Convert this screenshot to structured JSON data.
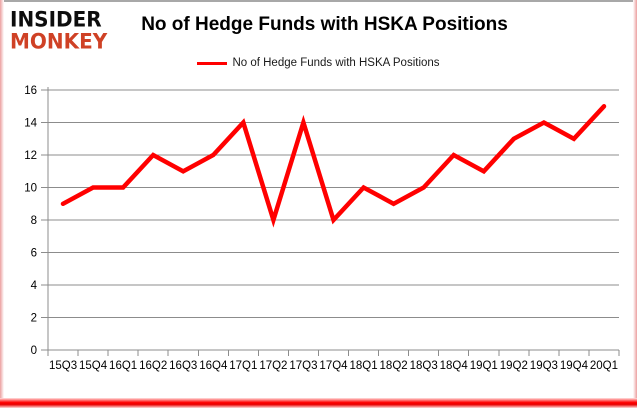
{
  "logo": {
    "line1": "INSIDER",
    "line2": "MONKEY",
    "accent_color": "#cf4125"
  },
  "header": {
    "title": "No of Hedge Funds with HSKA Positions"
  },
  "legend": {
    "label": "No of Hedge Funds with HSKA Positions",
    "swatch_color": "#ff0000"
  },
  "chart_data": {
    "type": "line",
    "title": "No of Hedge Funds with HSKA Positions",
    "xlabel": "",
    "ylabel": "",
    "categories": [
      "15Q3",
      "15Q4",
      "16Q1",
      "16Q2",
      "16Q3",
      "16Q4",
      "17Q1",
      "17Q2",
      "17Q3",
      "17Q4",
      "18Q1",
      "18Q2",
      "18Q3",
      "18Q4",
      "19Q1",
      "19Q2",
      "19Q3",
      "19Q4",
      "20Q1"
    ],
    "series": [
      {
        "name": "No of Hedge Funds with HSKA Positions",
        "color": "#ff0000",
        "values": [
          9,
          10,
          10,
          12,
          11,
          12,
          14,
          8,
          14,
          8,
          10,
          9,
          10,
          12,
          11,
          13,
          14,
          13,
          15
        ]
      }
    ],
    "ylim": [
      0,
      16
    ],
    "yticks": [
      0,
      2,
      4,
      6,
      8,
      10,
      12,
      14,
      16
    ],
    "grid": true,
    "gridline_color": "#8c8c8c",
    "legend_position": "top"
  }
}
